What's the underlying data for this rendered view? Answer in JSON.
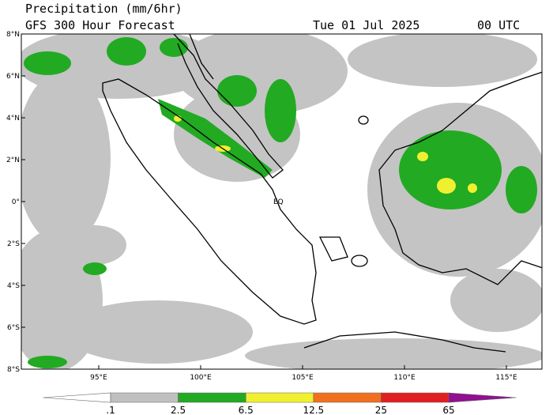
{
  "header": {
    "title": "Precipitation (mm/6hr)",
    "subtitle": "GFS 300 Hour Forecast",
    "date": "Tue 01 Jul 2025",
    "time": "00 UTC"
  },
  "map": {
    "lon_labels": [
      "95°E",
      "100°E",
      "105°E",
      "110°E",
      "115°E"
    ],
    "lat_labels": [
      "8°N",
      "6°N",
      "4°N",
      "2°N",
      "0°",
      "2°S",
      "4°S",
      "6°S",
      "8°S"
    ],
    "equator_label": "EQ"
  },
  "colorbar": {
    "labels": [
      ".1",
      "2.5",
      "6.5",
      "12.5",
      "25",
      "65"
    ],
    "colors": [
      "#ffffff",
      "#c0c0c0",
      "#22aa22",
      "#f0f030",
      "#f07020",
      "#e02020",
      "#901090"
    ]
  }
}
